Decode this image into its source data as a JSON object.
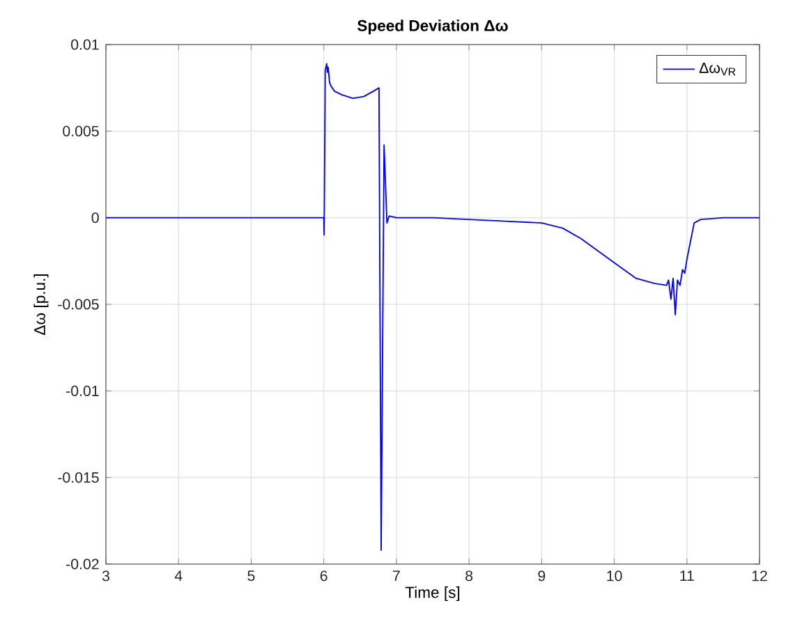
{
  "chart_data": {
    "type": "line",
    "title": "Speed Deviation Δω",
    "xlabel": "Time [s]",
    "ylabel": "Δω [p.u.]",
    "xlim": [
      3,
      12
    ],
    "xticks": [
      3,
      4,
      5,
      6,
      7,
      8,
      9,
      10,
      11,
      12
    ],
    "ylim": [
      -0.02,
      0.01
    ],
    "yticks": [
      -0.02,
      -0.015,
      -0.01,
      -0.005,
      0,
      0.005,
      0.01
    ],
    "grid": true,
    "legend": "top right",
    "line_style": "solid",
    "marker": "none",
    "series": [
      {
        "name": "Δω$_{VR}$",
        "color": "#0000ff",
        "x": [
          3,
          6.0,
          6.005,
          6.02,
          6.04,
          6.05,
          6.06,
          6.08,
          6.1,
          6.15,
          6.25,
          6.4,
          6.55,
          6.68,
          6.76,
          6.79,
          6.83,
          6.87,
          6.9,
          7.0,
          7.5,
          8,
          8.5,
          9,
          9.29,
          9.54,
          10,
          10.3,
          10.56,
          10.72,
          10.747,
          10.78,
          10.81,
          10.84,
          10.87,
          10.905,
          10.94,
          10.97,
          11.0,
          11.1,
          11.19,
          11.5,
          12
        ],
        "values": [
          0,
          0,
          -0.001,
          0.0085,
          0.0089,
          0.0084,
          0.0087,
          0.0078,
          0.0076,
          0.0073,
          0.0071,
          0.0069,
          0.007,
          0.0073,
          0.0075,
          -0.0192,
          0.0042,
          -0.0003,
          0.0001,
          0,
          0,
          -0.0001,
          -0.0002,
          -0.0003,
          -0.0006,
          -0.0012,
          -0.0026,
          -0.0035,
          -0.0038,
          -0.0039,
          -0.0036,
          -0.0047,
          -0.0035,
          -0.0056,
          -0.0036,
          -0.0039,
          -0.003,
          -0.0032,
          -0.0024,
          -0.0003,
          -0.0001,
          0,
          0
        ]
      }
    ]
  }
}
